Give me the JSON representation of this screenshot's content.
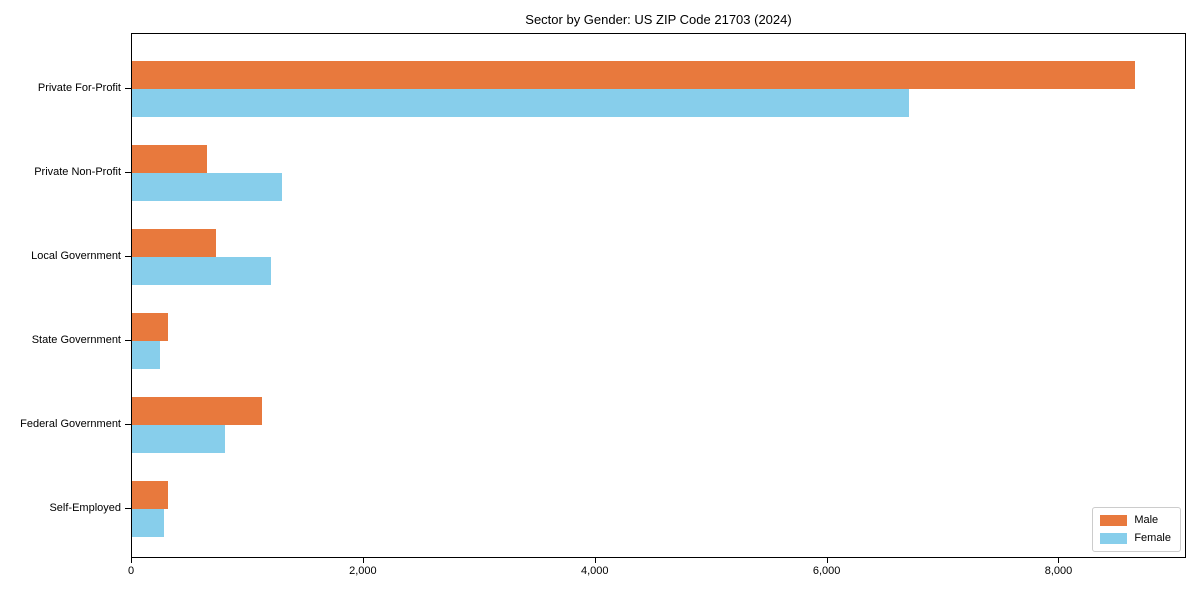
{
  "chart_data": {
    "type": "bar",
    "orientation": "horizontal",
    "title": "Sector by Gender: US ZIP Code 21703 (2024)",
    "categories": [
      "Private For-Profit",
      "Private Non-Profit",
      "Local Government",
      "State Government",
      "Federal Government",
      "Self-Employed"
    ],
    "series": [
      {
        "name": "Male",
        "color": "#E8793D",
        "values": [
          8670,
          650,
          730,
          310,
          1120,
          315
        ]
      },
      {
        "name": "Female",
        "color": "#87CEEB",
        "values": [
          6715,
          1300,
          1200,
          240,
          805,
          280
        ]
      }
    ],
    "xlabel": "",
    "ylabel": "",
    "xlim": [
      0,
      9100
    ],
    "xticks": [
      0,
      2000,
      4000,
      6000,
      8000
    ],
    "xtick_labels": [
      "0",
      "2,000",
      "4,000",
      "6,000",
      "8,000"
    ],
    "grid": false,
    "legend_position": "lower right",
    "spine_color": "#000000",
    "background_color": "#ffffff"
  }
}
